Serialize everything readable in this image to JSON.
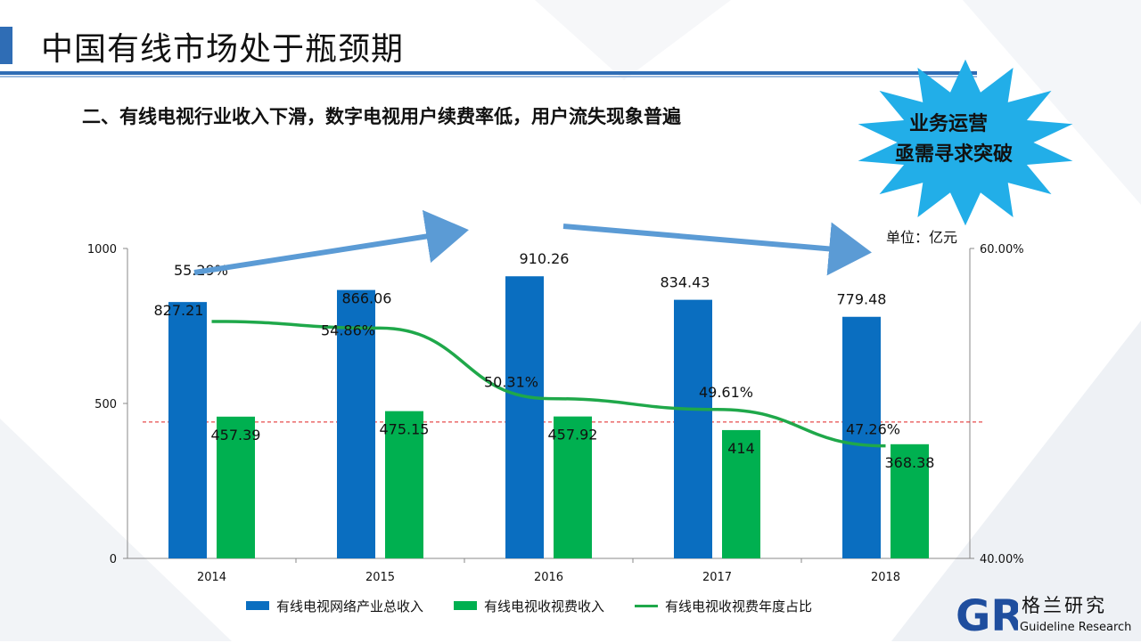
{
  "page": {
    "title": "中国有线市场处于瓶颈期",
    "subtitle": "二、有线电视行业收入下滑，数字电视用户续费率低，用户流失现象普遍",
    "unit_label": "单位：亿元",
    "callout_line1": "业务运营",
    "callout_line2": "亟需寻求突破",
    "logo_cn": "格兰研究",
    "logo_en": "Guideline Research",
    "logo_mark": "GR"
  },
  "colors": {
    "accent": "#2f6db5",
    "bar_total": "#0a6ec0",
    "bar_fee": "#00b050",
    "line": "#1fa84a",
    "reference": "#e02020",
    "arrow": "#5b9bd5",
    "burst": "#22aee8"
  },
  "chart_data": {
    "type": "bar",
    "categories": [
      "2014",
      "2015",
      "2016",
      "2017",
      "2018"
    ],
    "series": [
      {
        "name": "有线电视网络产业总收入",
        "type": "bar",
        "axis": "left",
        "values": [
          827.21,
          866.06,
          910.26,
          834.43,
          779.48
        ],
        "labels": [
          "827.21",
          "866.06",
          "910.26",
          "834.43",
          "779.48"
        ]
      },
      {
        "name": "有线电视收视费收入",
        "type": "bar",
        "axis": "left",
        "values": [
          457.39,
          475.15,
          457.92,
          414,
          368.38
        ],
        "labels": [
          "457.39",
          "475.15",
          "457.92",
          "414",
          "368.38"
        ]
      },
      {
        "name": "有线电视收视费年度占比",
        "type": "line",
        "axis": "right",
        "values": [
          55.29,
          54.86,
          50.31,
          49.61,
          47.26
        ],
        "labels": [
          "55.29%",
          "54.86%",
          "50.31%",
          "49.61%",
          "47.26%"
        ]
      }
    ],
    "y_left": {
      "min": 0,
      "max": 1000,
      "ticks": [
        "0",
        "500",
        "1000"
      ]
    },
    "y_right": {
      "min": 40,
      "max": 60,
      "ticks": [
        "40.00%",
        "60.00%"
      ]
    },
    "reference_line_value": 440,
    "legend_position": "bottom",
    "grid": false
  }
}
